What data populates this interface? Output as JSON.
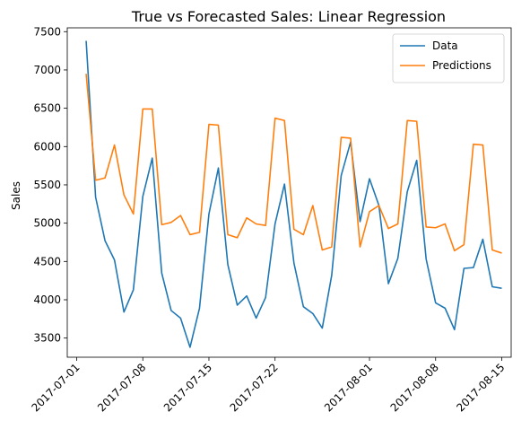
{
  "chart_data": {
    "type": "line",
    "title": "True vs Forecasted Sales: Linear Regression",
    "xlabel": "",
    "ylabel": "Sales",
    "x_start": "2017-07-02",
    "xlim": [
      "2017-06-30",
      "2017-08-16"
    ],
    "ylim": [
      3250,
      7550
    ],
    "x_ticks": [
      "2017-07-01",
      "2017-07-08",
      "2017-07-15",
      "2017-07-22",
      "2017-08-01",
      "2017-08-08",
      "2017-08-15"
    ],
    "y_ticks": [
      3500,
      4000,
      4500,
      5000,
      5500,
      6000,
      6500,
      7000,
      7500
    ],
    "grid": false,
    "legend_position": "top-right",
    "series": [
      {
        "name": "Data",
        "color": "#1f77b4",
        "values": [
          7380,
          5340,
          4770,
          4520,
          3840,
          4130,
          5350,
          5850,
          4350,
          3860,
          3760,
          3380,
          3890,
          5120,
          5720,
          4460,
          3930,
          4050,
          3760,
          4030,
          4990,
          5510,
          4480,
          3910,
          3820,
          3630,
          4320,
          5620,
          6060,
          5020,
          5580,
          5230,
          4210,
          4540,
          5410,
          5820,
          4530,
          3960,
          3890,
          3610,
          4410,
          4420,
          4790,
          4170,
          4150
        ]
      },
      {
        "name": "Predictions",
        "color": "#ff7f0e",
        "values": [
          6950,
          5560,
          5590,
          6020,
          5370,
          5120,
          6490,
          6490,
          4980,
          5010,
          5100,
          4850,
          4880,
          6290,
          6280,
          4850,
          4810,
          5070,
          4990,
          4970,
          6370,
          6340,
          4920,
          4850,
          5230,
          4650,
          4690,
          6120,
          6110,
          4690,
          5150,
          5230,
          4930,
          4990,
          6340,
          6330,
          4950,
          4940,
          4990,
          4640,
          4720,
          6030,
          6020,
          4650,
          4610
        ]
      }
    ]
  }
}
